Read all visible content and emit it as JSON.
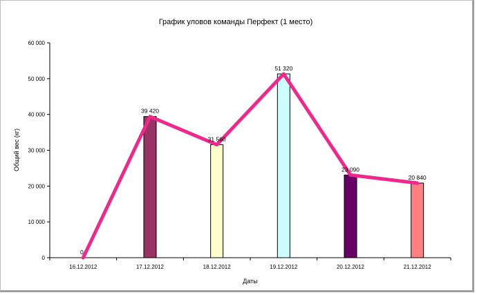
{
  "chart_data": {
    "type": "bar",
    "title": "График уловов команды Перфект (1 место)",
    "xlabel": "Даты",
    "ylabel": "Общий вес (кг)",
    "categories": [
      "16.12.2012",
      "17.12.2012",
      "18.12.2012",
      "19.12.2012",
      "20.12.2012",
      "21.12.2012"
    ],
    "values": [
      0,
      39420,
      31560,
      51320,
      23090,
      20840
    ],
    "value_labels": [
      "0",
      "39 420",
      "31 560",
      "51 320",
      "23 090",
      "20 840"
    ],
    "bar_colors": [
      "#ffffff",
      "#993366",
      "#ffffcc",
      "#ccffff",
      "#660066",
      "#ff8080"
    ],
    "ylim": [
      0,
      60000
    ],
    "yticks": [
      0,
      10000,
      20000,
      30000,
      40000,
      50000,
      60000
    ],
    "ytick_labels": [
      "0",
      "10 000",
      "20 000",
      "30 000",
      "40 000",
      "50 000",
      "60 000"
    ],
    "line_overlay": {
      "values": [
        0,
        39420,
        31560,
        51320,
        23090,
        20840
      ],
      "color": "#f0288c"
    },
    "grid": false,
    "legend": "none"
  }
}
